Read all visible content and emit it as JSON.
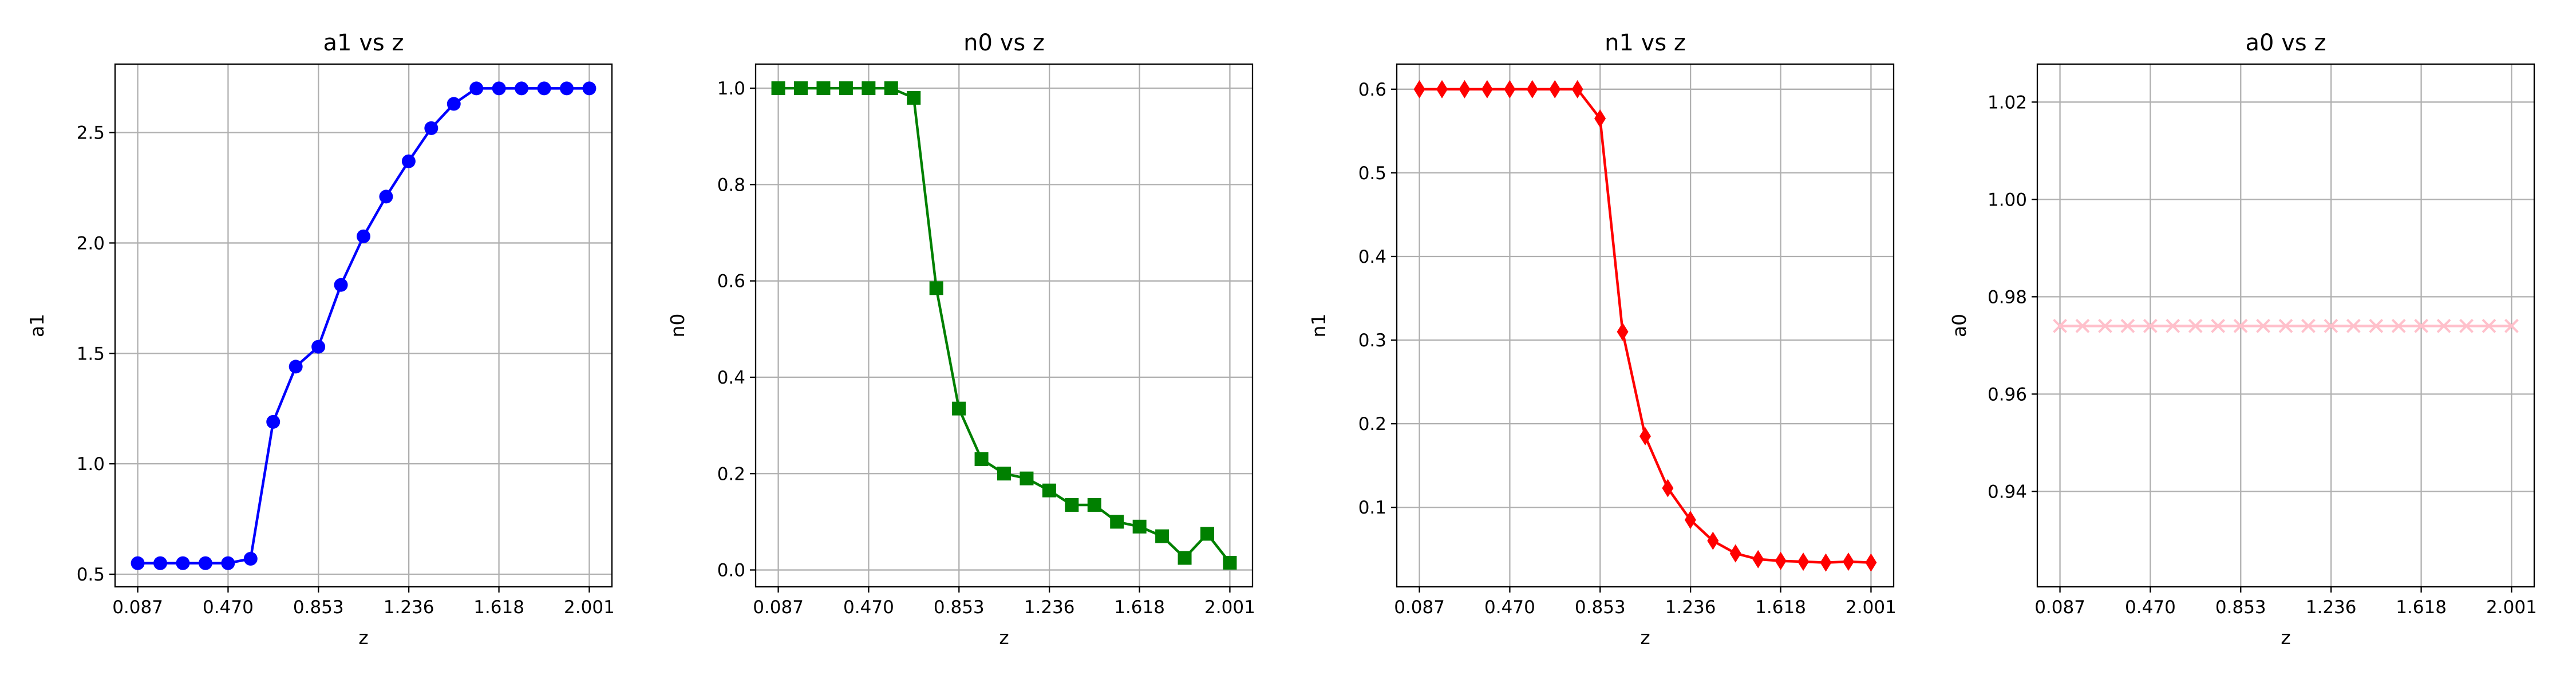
{
  "chart_data": [
    {
      "type": "line",
      "title": "a1 vs z",
      "xlabel": "z",
      "ylabel": "a1",
      "color": "#0000ff",
      "marker": "circle",
      "grid": true,
      "x": [
        0.087,
        0.1827,
        0.2784,
        0.3741,
        0.4698,
        0.5655,
        0.6612,
        0.7569,
        0.8526,
        0.9483,
        1.044,
        1.1397,
        1.2354,
        1.3311,
        1.4268,
        1.5225,
        1.6182,
        1.7139,
        1.8096,
        1.9053,
        2.001
      ],
      "values": [
        0.55,
        0.55,
        0.55,
        0.55,
        0.55,
        0.57,
        1.19,
        1.44,
        1.53,
        1.81,
        2.03,
        2.21,
        2.37,
        2.52,
        2.63,
        2.7,
        2.7,
        2.7,
        2.7,
        2.7,
        2.7
      ],
      "xlim": [
        -0.009,
        2.097
      ],
      "ylim": [
        0.443,
        2.81
      ],
      "xticks": [
        0.087,
        {
          "value": 0.47,
          "label": "0.470"
        },
        0.853,
        1.236,
        1.618,
        2.001
      ],
      "yticks": [
        0.5,
        {
          "value": 1,
          "label": "1.0"
        },
        1.5,
        {
          "value": 2,
          "label": "2.0"
        },
        2.5
      ]
    },
    {
      "type": "line",
      "title": "n0 vs z",
      "xlabel": "z",
      "ylabel": "n0",
      "color": "#008000",
      "marker": "square",
      "grid": true,
      "x": [
        0.087,
        0.1827,
        0.2784,
        0.3741,
        0.4698,
        0.5655,
        0.6612,
        0.7569,
        0.8526,
        0.9483,
        1.044,
        1.1397,
        1.2354,
        1.3311,
        1.4268,
        1.5225,
        1.6182,
        1.7139,
        1.8096,
        1.9053,
        2.001
      ],
      "values": [
        1.0,
        1.0,
        1.0,
        1.0,
        1.0,
        1.0,
        0.98,
        0.585,
        0.335,
        0.23,
        0.2,
        0.19,
        0.165,
        0.135,
        0.135,
        0.1,
        0.09,
        0.07,
        0.025,
        0.075,
        0.015
      ],
      "xlim": [
        -0.009,
        2.097
      ],
      "ylim": [
        -0.035,
        1.05
      ],
      "xticks": [
        0.087,
        {
          "value": 0.47,
          "label": "0.470"
        },
        0.853,
        1.236,
        1.618,
        2.001
      ],
      "yticks": [
        {
          "value": 0,
          "label": "0.0"
        },
        0.2,
        0.4,
        0.6,
        0.8,
        {
          "value": 1,
          "label": "1.0"
        }
      ]
    },
    {
      "type": "line",
      "title": "n1 vs z",
      "xlabel": "z",
      "ylabel": "n1",
      "color": "#ff0000",
      "marker": "diamond",
      "grid": true,
      "x": [
        0.087,
        0.1827,
        0.2784,
        0.3741,
        0.4698,
        0.5655,
        0.6612,
        0.7569,
        0.8526,
        0.9483,
        1.044,
        1.1397,
        1.2354,
        1.3311,
        1.4268,
        1.5225,
        1.6182,
        1.7139,
        1.8096,
        1.9053,
        2.001
      ],
      "values": [
        0.6,
        0.6,
        0.6,
        0.6,
        0.6,
        0.6,
        0.6,
        0.6,
        0.565,
        0.31,
        0.185,
        0.123,
        0.085,
        0.06,
        0.045,
        0.038,
        0.036,
        0.035,
        0.034,
        0.035,
        0.034
      ],
      "xlim": [
        -0.009,
        2.097
      ],
      "ylim": [
        0.005,
        0.63
      ],
      "xticks": [
        0.087,
        {
          "value": 0.47,
          "label": "0.470"
        },
        0.853,
        1.236,
        1.618,
        2.001
      ],
      "yticks": [
        0.1,
        0.2,
        0.3,
        0.4,
        0.5,
        0.6
      ]
    },
    {
      "type": "line",
      "title": "a0 vs z",
      "xlabel": "z",
      "ylabel": "a0",
      "color": "#ffc0cb",
      "marker": "x",
      "grid": true,
      "x": [
        0.087,
        0.1827,
        0.2784,
        0.3741,
        0.4698,
        0.5655,
        0.6612,
        0.7569,
        0.8526,
        0.9483,
        1.044,
        1.1397,
        1.2354,
        1.3311,
        1.4268,
        1.5225,
        1.6182,
        1.7139,
        1.8096,
        1.9053,
        2.001
      ],
      "values": [
        0.974,
        0.974,
        0.974,
        0.974,
        0.974,
        0.974,
        0.974,
        0.974,
        0.974,
        0.974,
        0.974,
        0.974,
        0.974,
        0.974,
        0.974,
        0.974,
        0.974,
        0.974,
        0.974,
        0.974,
        0.974
      ],
      "xlim": [
        -0.009,
        2.097
      ],
      "ylim": [
        0.9204,
        1.0278
      ],
      "xticks": [
        0.087,
        {
          "value": 0.47,
          "label": "0.470"
        },
        0.853,
        1.236,
        1.618,
        2.001
      ],
      "yticks": [
        0.94,
        0.96,
        0.98,
        {
          "value": 1,
          "label": "1.00"
        },
        1.02
      ]
    }
  ]
}
